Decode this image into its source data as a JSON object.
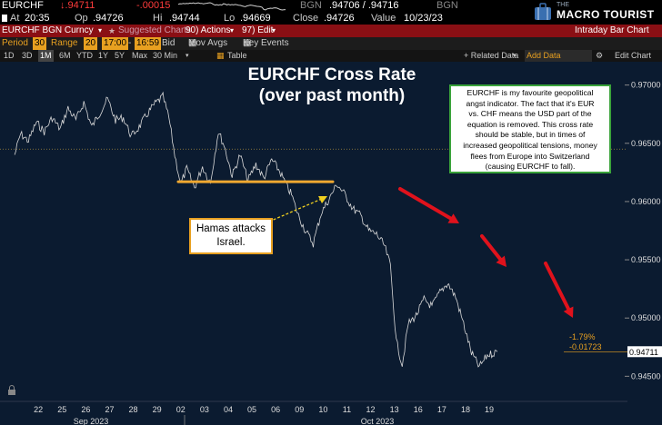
{
  "ticker": {
    "symbol": "EURCHF",
    "last": "↓.94711",
    "change": "-.00015",
    "source1": "BGN",
    "bid_ask": ".94706 / .94716",
    "source2": "BGN"
  },
  "stats": {
    "at_label": "At",
    "at_time": "20:35",
    "op_label": "Op",
    "op_value": ".94726",
    "hi_label": "Hi",
    "hi_value": ".94744",
    "lo_label": "Lo",
    "lo_value": ".94669",
    "close_label": "Close",
    "close_value": ".94726",
    "value_label": "Value",
    "value_date": "10/23/23"
  },
  "logo": {
    "the": "THE",
    "name": "MACRO TOURIST"
  },
  "titlebar": {
    "security": "EURCHF BGN Curncy",
    "suggested": "Suggested Charts",
    "actions": "90) Actions",
    "edit": "97) Edit",
    "right_title": "Intraday Bar Chart"
  },
  "controls": {
    "period_label": "Period",
    "period_value": "30",
    "range_label": "Range",
    "range_value": "20",
    "time_from": "17:00",
    "time_to": "16:59",
    "bid_label": "Bid",
    "mov_avgs": "Mov Avgs",
    "key_events": "Key Events"
  },
  "range_bar": {
    "buttons": [
      "1D",
      "3D",
      "1M",
      "6M",
      "YTD",
      "1Y",
      "5Y",
      "Max"
    ],
    "active": "1M",
    "interval": "30 Min",
    "table": "Table",
    "related": "+ Related Data",
    "add_data": "Add Data",
    "edit_chart": "Edit Chart"
  },
  "annotations": {
    "title_line1": "EURCHF Cross Rate",
    "title_line2": "(over past month)",
    "explain_lines": [
      "EURCHF is my favourite geopolitical",
      "angst indicator. The fact that it's EUR",
      "vs. CHF means the USD part of the",
      "equation is removed. This cross rate",
      "should be stable, but in times of",
      "increased geopolitical tensions, money",
      "flees from Europe into Switzerland",
      "(causing EURCHF to fall)."
    ],
    "hamas_line1": "Hamas attacks",
    "hamas_line2": "Israel.",
    "pct_change": "-1.79%",
    "abs_change": "-0.01723"
  },
  "colors": {
    "background": "#0b1b30",
    "titlebar": "#8a0f14",
    "accent_orange": "#e8a020",
    "arrow_red": "#e0121c",
    "support_line": "#f0a830"
  },
  "chart_data": {
    "type": "line",
    "series": [
      {
        "points": [
          [
            "09-21 12:00",
            0.964
          ],
          [
            "09-21 18:00",
            0.9658
          ],
          [
            "09-22 02:00",
            0.9652
          ],
          [
            "09-22 10:00",
            0.9668
          ],
          [
            "09-22 18:00",
            0.966
          ],
          [
            "09-25 02:00",
            0.9672
          ],
          [
            "09-25 10:00",
            0.9662
          ],
          [
            "09-25 18:00",
            0.968
          ],
          [
            "09-26 02:00",
            0.967
          ],
          [
            "09-26 10:00",
            0.9685
          ],
          [
            "09-26 18:00",
            0.9664
          ],
          [
            "09-27 02:00",
            0.9676
          ],
          [
            "09-27 10:00",
            0.9688
          ],
          [
            "09-27 18:00",
            0.967
          ],
          [
            "09-28 02:00",
            0.9672
          ],
          [
            "09-28 10:00",
            0.9656
          ],
          [
            "09-28 18:00",
            0.9664
          ],
          [
            "09-29 02:00",
            0.9675
          ],
          [
            "09-29 10:00",
            0.9684
          ],
          [
            "09-29 18:00",
            0.969
          ],
          [
            "10-02 00:00",
            0.9672
          ],
          [
            "10-02 06:00",
            0.964
          ],
          [
            "10-02 12:00",
            0.9615
          ],
          [
            "10-02 18:00",
            0.9628
          ],
          [
            "10-03 02:00",
            0.9612
          ],
          [
            "10-03 10:00",
            0.963
          ],
          [
            "10-03 18:00",
            0.9616
          ],
          [
            "10-04 02:00",
            0.966
          ],
          [
            "10-04 08:00",
            0.9648
          ],
          [
            "10-04 16:00",
            0.9622
          ],
          [
            "10-05 00:00",
            0.964
          ],
          [
            "10-05 08:00",
            0.9618
          ],
          [
            "10-05 16:00",
            0.9632
          ],
          [
            "10-06 00:00",
            0.962
          ],
          [
            "10-06 08:00",
            0.9636
          ],
          [
            "10-06 16:00",
            0.9626
          ],
          [
            "10-09 00:00",
            0.9612
          ],
          [
            "10-09 04:00",
            0.9606
          ],
          [
            "10-09 10:00",
            0.959
          ],
          [
            "10-09 18:00",
            0.9575
          ],
          [
            "10-10 02:00",
            0.9564
          ],
          [
            "10-10 10:00",
            0.959
          ],
          [
            "10-10 18:00",
            0.9602
          ],
          [
            "10-11 02:00",
            0.9615
          ],
          [
            "10-11 10:00",
            0.9606
          ],
          [
            "10-11 18:00",
            0.9594
          ],
          [
            "10-12 02:00",
            0.9588
          ],
          [
            "10-12 10:00",
            0.9575
          ],
          [
            "10-12 18:00",
            0.9572
          ],
          [
            "10-13 02:00",
            0.9562
          ],
          [
            "10-13 08:00",
            0.9545
          ],
          [
            "10-13 14:00",
            0.948
          ],
          [
            "10-13 20:00",
            0.946
          ],
          [
            "10-16 02:00",
            0.9495
          ],
          [
            "10-16 10:00",
            0.9502
          ],
          [
            "10-16 18:00",
            0.9516
          ],
          [
            "10-17 02:00",
            0.951
          ],
          [
            "10-17 10:00",
            0.9522
          ],
          [
            "10-17 18:00",
            0.953
          ],
          [
            "10-18 02:00",
            0.9518
          ],
          [
            "10-18 10:00",
            0.9495
          ],
          [
            "10-18 18:00",
            0.947
          ],
          [
            "10-19 02:00",
            0.9458
          ],
          [
            "10-19 10:00",
            0.9468
          ],
          [
            "10-19 20:00",
            0.94711
          ]
        ]
      }
    ],
    "x_ticks": [
      "22",
      "25",
      "26",
      "27",
      "28",
      "29",
      "02",
      "03",
      "04",
      "05",
      "06",
      "09",
      "10",
      "11",
      "12",
      "13",
      "16",
      "17",
      "18",
      "19"
    ],
    "x_month_labels": [
      "Sep 2023",
      "Oct 2023"
    ],
    "y_ticks": [
      "0.97000",
      "0.96500",
      "0.96000",
      "0.95500",
      "0.95000",
      "0.94500"
    ],
    "ylim": [
      0.943,
      0.972
    ],
    "last_value_label": "0.94711",
    "reference_line": 0.9645,
    "support_level": 0.9617,
    "grid": false
  }
}
